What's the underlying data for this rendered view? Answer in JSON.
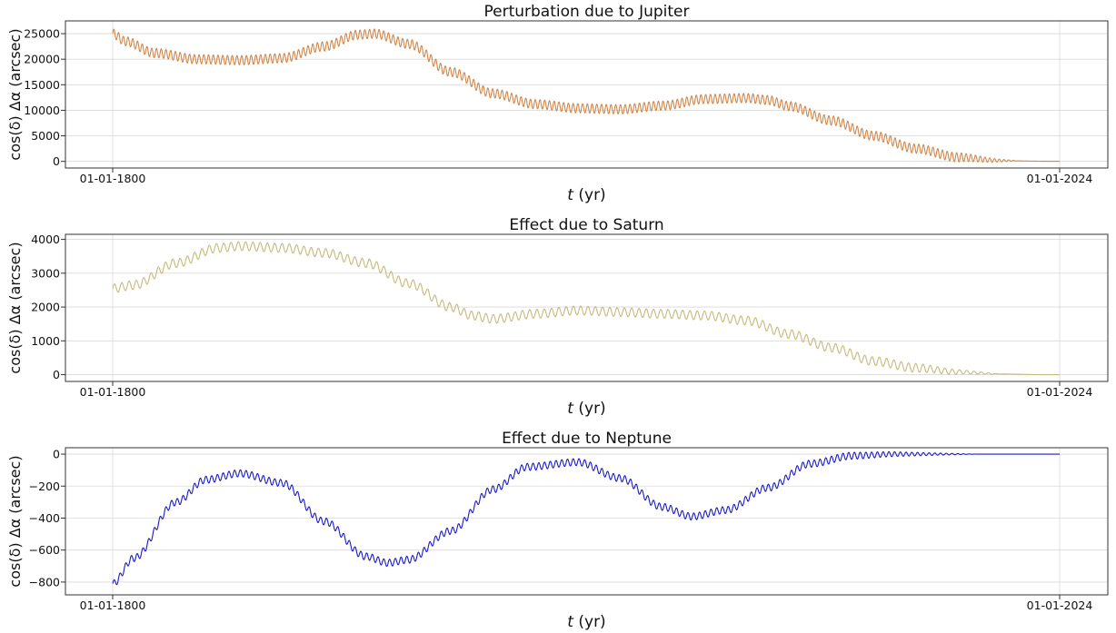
{
  "chart_data": [
    {
      "type": "line",
      "title": "Perturbation due to Jupiter",
      "xlabel_italic": "t",
      "xlabel_rest": " (yr)",
      "ylabel": "cos(δ) Δα (arcsec)",
      "x_tick_labels": [
        "01-01-1800",
        "01-01-2024"
      ],
      "x_range": [
        "01-01-1800",
        "01-01-2024"
      ],
      "ylim": [
        -1300,
        27500
      ],
      "yticks": [
        0,
        5000,
        10000,
        15000,
        20000,
        25000
      ],
      "grid": true,
      "color": "#d2874a",
      "oscillation": {
        "cycles": 200,
        "amplitude": 900,
        "fade_start_year": 2000
      },
      "series": [
        {
          "x": [
            1800,
            1803,
            1810,
            1820,
            1830,
            1840,
            1850,
            1858,
            1862,
            1870,
            1880,
            1890,
            1900,
            1910,
            1920,
            1930,
            1940,
            1950,
            1955,
            1960,
            1970,
            1980,
            1990,
            2000,
            2010,
            2020,
            2024
          ],
          "values": [
            25000,
            23500,
            21200,
            20000,
            19800,
            20200,
            22500,
            24800,
            25000,
            23000,
            17500,
            13300,
            11200,
            10400,
            10200,
            10900,
            12200,
            12400,
            12000,
            10800,
            8000,
            5000,
            2500,
            800,
            150,
            30,
            20
          ]
        }
      ]
    },
    {
      "type": "line",
      "title": "Effect due to Saturn",
      "xlabel_italic": "t",
      "xlabel_rest": " (yr)",
      "ylabel": "cos(δ) Δα (arcsec)",
      "x_tick_labels": [
        "01-01-1800",
        "01-01-2024"
      ],
      "x_range": [
        "01-01-1800",
        "01-01-2024"
      ],
      "ylim": [
        -200,
        4150
      ],
      "yticks": [
        0,
        1000,
        2000,
        3000,
        4000
      ],
      "grid": true,
      "color": "#c6b97a",
      "oscillation": {
        "cycles": 130,
        "amplitude": 130,
        "fade_start_year": 1990
      },
      "series": [
        {
          "x": [
            1800,
            1805,
            1815,
            1825,
            1830,
            1840,
            1850,
            1860,
            1870,
            1880,
            1885,
            1890,
            1900,
            1910,
            1920,
            1930,
            1940,
            1950,
            1960,
            1970,
            1980,
            1990,
            2000,
            2010,
            2020,
            2024
          ],
          "values": [
            2550,
            2650,
            3300,
            3750,
            3800,
            3750,
            3600,
            3300,
            2700,
            2000,
            1750,
            1650,
            1800,
            1900,
            1850,
            1800,
            1750,
            1600,
            1200,
            800,
            400,
            200,
            80,
            20,
            0,
            0
          ]
        }
      ]
    },
    {
      "type": "line",
      "title": "Effect due to Neptune",
      "xlabel_italic": "t",
      "xlabel_rest": " (yr)",
      "ylabel": "cos(δ) Δα (arcsec)",
      "x_tick_labels": [
        "01-01-1800",
        "01-01-2024"
      ],
      "x_range": [
        "01-01-1800",
        "01-01-2024"
      ],
      "ylim": [
        -880,
        40
      ],
      "yticks": [
        -800,
        -600,
        -400,
        -200,
        0
      ],
      "grid": true,
      "color": "#1a1acc",
      "oscillation": {
        "cycles": 165,
        "amplitude": 22,
        "fade_start_year": 1975
      },
      "series": [
        {
          "x": [
            1800,
            1805,
            1815,
            1822,
            1830,
            1840,
            1850,
            1860,
            1865,
            1870,
            1880,
            1890,
            1898,
            1910,
            1920,
            1930,
            1937,
            1945,
            1955,
            1965,
            1975,
            1985,
            1995,
            2005,
            2015,
            2024
          ],
          "values": [
            -810,
            -650,
            -300,
            -160,
            -120,
            -180,
            -420,
            -640,
            -680,
            -660,
            -480,
            -220,
            -80,
            -50,
            -150,
            -330,
            -390,
            -350,
            -210,
            -60,
            -10,
            0,
            0,
            0,
            0,
            0
          ]
        }
      ]
    }
  ]
}
